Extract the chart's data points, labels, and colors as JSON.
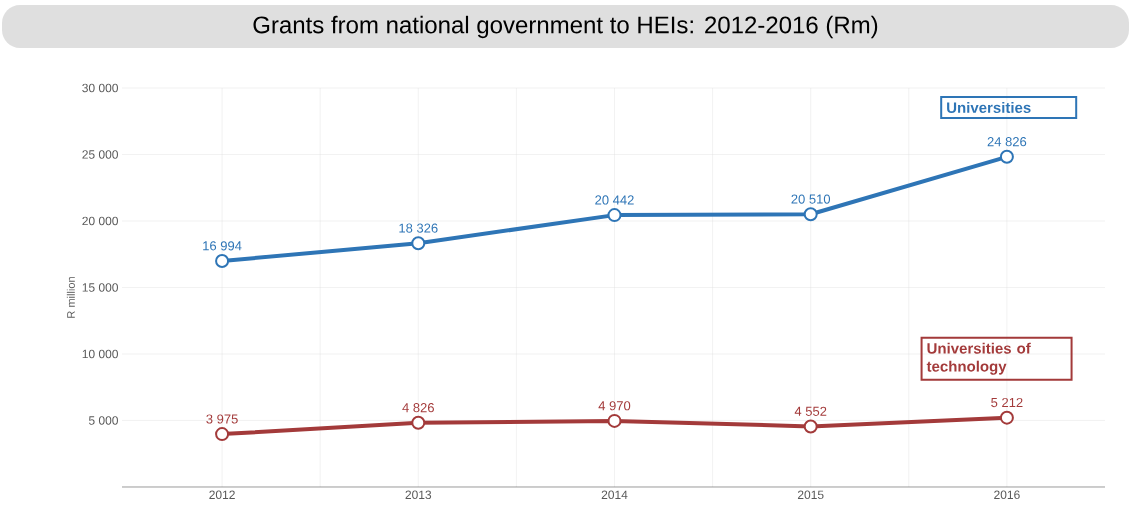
{
  "chart_data": {
    "type": "line",
    "title": "Grants from national government to HEIs: 2012-2016 (Rm)",
    "ylabel": "R million",
    "categories": [
      "2012",
      "2013",
      "2014",
      "2015",
      "2016"
    ],
    "series": [
      {
        "name": "Universities",
        "color": "#2e75b6",
        "values": [
          16994,
          18326,
          20442,
          20510,
          24826
        ],
        "value_labels": [
          "16 994",
          "18 326",
          "20 442",
          "20 510",
          "24 826"
        ]
      },
      {
        "name": "Universities of technology",
        "color": "#a33a3a",
        "values": [
          3975,
          4826,
          4970,
          4552,
          5212
        ],
        "value_labels": [
          "3 975",
          "4 826",
          "4 970",
          "4 552",
          "5 212"
        ]
      }
    ],
    "ylim": [
      0,
      30000
    ],
    "yticks": [
      {
        "value": 5000,
        "label": "5 000"
      },
      {
        "value": 10000,
        "label": "10 000"
      },
      {
        "value": 15000,
        "label": "15 000"
      },
      {
        "value": 20000,
        "label": "20 000"
      },
      {
        "value": 25000,
        "label": "25 000"
      },
      {
        "value": 30000,
        "label": "30 000"
      }
    ],
    "grid": true,
    "legend": false,
    "marker": "circle",
    "line_style": "solid"
  }
}
